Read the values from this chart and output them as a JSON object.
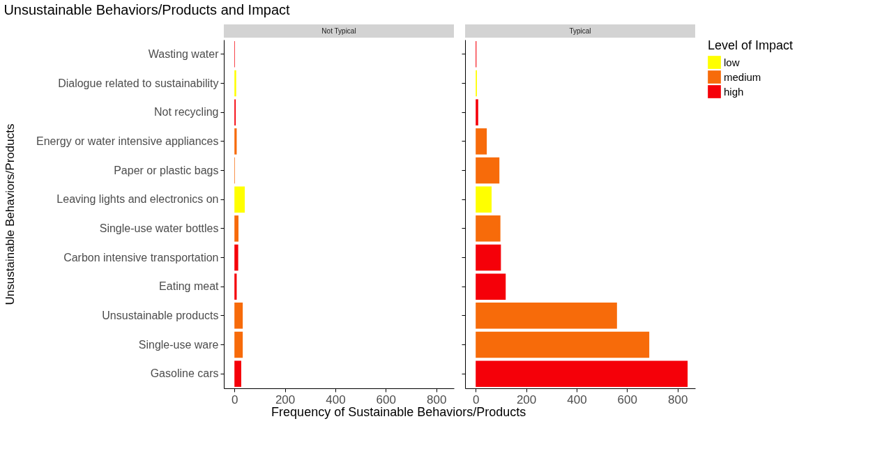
{
  "chart_data": [
    {
      "type": "bar",
      "orientation": "horizontal",
      "title": "Unsustainable Behaviors/Products and Impact",
      "subtitle": "Not Typical",
      "xlabel": "Frequency of Sustainable Behaviors/Products",
      "ylabel": "Unsustainable Behaviors/Products",
      "grid": false,
      "categories": [
        "Wasting water",
        "Dialogue related to sustainability",
        "Not recycling",
        "Energy or water intensive appliances",
        "Paper or plastic bags",
        "Leaving lights and electronics on",
        "Single-use water bottles",
        "Carbon intensive transportation",
        "Eating meat",
        "Unsustainable products",
        "Single-use ware",
        "Gasoline cars"
      ],
      "xlim": [
        -42,
        870
      ],
      "xticks": [
        0,
        200,
        400,
        600,
        800
      ],
      "series": [
        {
          "color": "#ffff00",
          "values": [
            null,
            7,
            null,
            null,
            null,
            41,
            null,
            null,
            null,
            null,
            null,
            null
          ]
        },
        {
          "color": "#f76b0a",
          "values": [
            null,
            null,
            null,
            9,
            2,
            null,
            16,
            null,
            null,
            33,
            33,
            null
          ]
        },
        {
          "color": "#f50009",
          "values": [
            2,
            null,
            5,
            null,
            null,
            null,
            null,
            15,
            9,
            null,
            null,
            27
          ]
        }
      ]
    },
    {
      "type": "bar",
      "orientation": "horizontal",
      "subtitle": "Typical",
      "legend_title": "Level of Impact",
      "legend": "right",
      "grid": false,
      "tick_labels": "x",
      "categories": [
        null,
        null,
        null,
        null,
        null,
        null,
        null,
        null,
        null,
        null,
        null,
        null
      ],
      "xlim": [
        -42,
        870
      ],
      "xticks": [
        0,
        200,
        400,
        600,
        800
      ],
      "series": [
        {
          "name": "low",
          "color": "#ffff00",
          "values": [
            null,
            5,
            null,
            null,
            null,
            63,
            null,
            null,
            null,
            null,
            null,
            null
          ]
        },
        {
          "name": "medium",
          "color": "#f76b0a",
          "values": [
            null,
            null,
            null,
            44,
            94,
            null,
            98,
            null,
            null,
            560,
            688,
            null
          ]
        },
        {
          "name": "high",
          "color": "#f50009",
          "values": [
            3,
            null,
            10,
            null,
            null,
            null,
            null,
            100,
            119,
            null,
            null,
            840
          ]
        }
      ]
    }
  ]
}
